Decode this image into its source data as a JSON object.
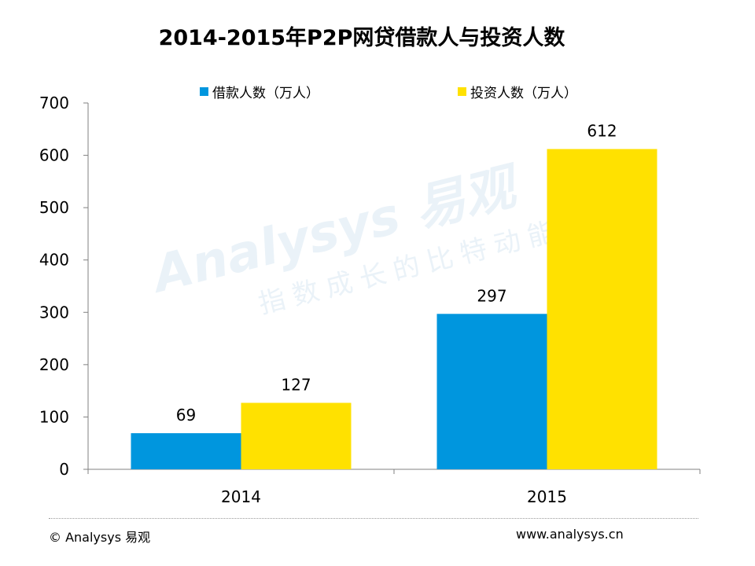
{
  "watermark": {
    "brand": "Analysys 易观",
    "slogan": "指数成长的比特动能"
  },
  "footer": {
    "copyright": "© Analysys 易观",
    "url": "www.analysys.cn"
  },
  "colors": {
    "borrow": "#0096de",
    "invest": "#ffe100",
    "axis": "#808080"
  },
  "chart_data": {
    "type": "bar",
    "title": "2014-2015年P2P网贷借款人与投资人数",
    "categories": [
      "2014",
      "2015"
    ],
    "series": [
      {
        "name": "借款人数（万人）",
        "values": [
          69,
          297
        ]
      },
      {
        "name": "投资人数（万人）",
        "values": [
          127,
          612
        ]
      }
    ],
    "yticks": [
      0,
      100,
      200,
      300,
      400,
      500,
      600,
      700
    ],
    "ylim": [
      0,
      700
    ],
    "xlabel": "",
    "ylabel": "",
    "legend_position": "top"
  }
}
